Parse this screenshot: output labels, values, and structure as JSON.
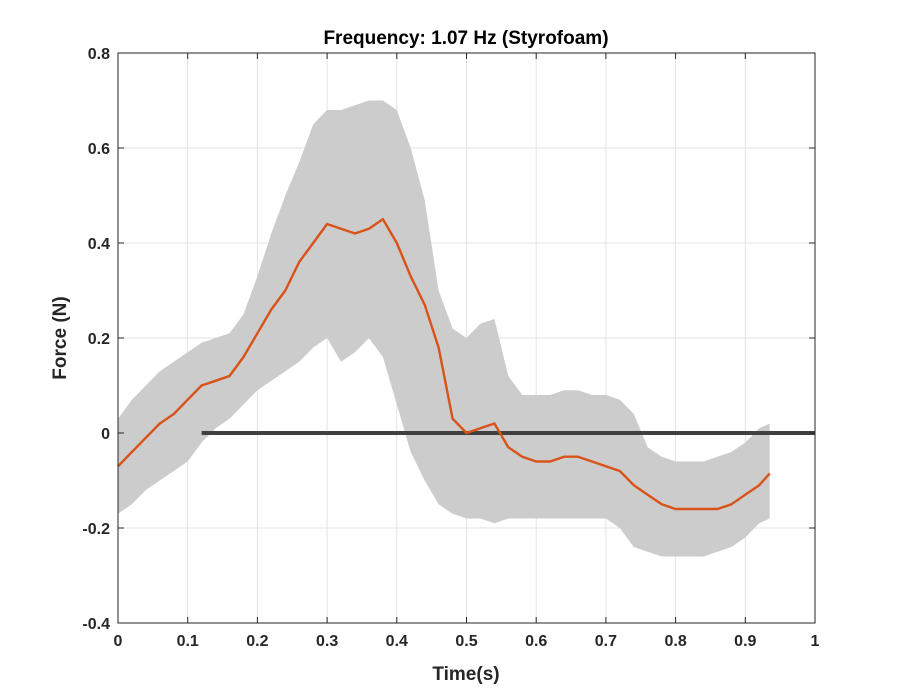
{
  "chart_data": {
    "type": "line",
    "title": "Frequency: 1.07 Hz (Styrofoam)",
    "xlabel": "Time(s)",
    "ylabel": "Force (N)",
    "xlim": [
      0,
      1
    ],
    "ylim": [
      -0.4,
      0.8
    ],
    "xticks": [
      0,
      0.1,
      0.2,
      0.3,
      0.4,
      0.5,
      0.6,
      0.7,
      0.8,
      0.9,
      1
    ],
    "xtick_labels": [
      "0",
      "0.1",
      "0.2",
      "0.3",
      "0.4",
      "0.5",
      "0.6",
      "0.7",
      "0.8",
      "0.9",
      "1"
    ],
    "yticks": [
      -0.4,
      -0.2,
      0,
      0.2,
      0.4,
      0.6,
      0.8
    ],
    "ytick_labels": [
      "-0.4",
      "-0.2",
      "0",
      "0.2",
      "0.4",
      "0.6",
      "0.8"
    ],
    "grid": true,
    "legend": "none",
    "colors": {
      "mean": "#d95319",
      "band": "#cccccc",
      "zero_line": "#404040",
      "grid": "#e3e3e3",
      "axis": "#262626"
    },
    "mean": {
      "x": [
        0,
        0.02,
        0.04,
        0.06,
        0.08,
        0.1,
        0.12,
        0.14,
        0.16,
        0.18,
        0.2,
        0.22,
        0.24,
        0.26,
        0.28,
        0.3,
        0.32,
        0.34,
        0.36,
        0.38,
        0.4,
        0.42,
        0.44,
        0.46,
        0.48,
        0.5,
        0.52,
        0.54,
        0.56,
        0.58,
        0.6,
        0.62,
        0.64,
        0.66,
        0.68,
        0.7,
        0.72,
        0.74,
        0.76,
        0.78,
        0.8,
        0.82,
        0.84,
        0.86,
        0.88,
        0.9,
        0.92,
        0.935
      ],
      "y": [
        -0.07,
        -0.04,
        -0.01,
        0.02,
        0.04,
        0.07,
        0.1,
        0.11,
        0.12,
        0.16,
        0.21,
        0.26,
        0.3,
        0.36,
        0.4,
        0.44,
        0.43,
        0.42,
        0.43,
        0.45,
        0.4,
        0.33,
        0.27,
        0.18,
        0.03,
        0.0,
        0.01,
        0.02,
        -0.03,
        -0.05,
        -0.06,
        -0.06,
        -0.05,
        -0.05,
        -0.06,
        -0.07,
        -0.08,
        -0.11,
        -0.13,
        -0.15,
        -0.16,
        -0.16,
        -0.16,
        -0.16,
        -0.15,
        -0.13,
        -0.11,
        -0.085
      ]
    },
    "band": {
      "x": [
        0,
        0.02,
        0.04,
        0.06,
        0.08,
        0.1,
        0.12,
        0.14,
        0.16,
        0.18,
        0.2,
        0.22,
        0.24,
        0.26,
        0.28,
        0.3,
        0.32,
        0.34,
        0.36,
        0.38,
        0.4,
        0.42,
        0.44,
        0.46,
        0.48,
        0.5,
        0.52,
        0.54,
        0.56,
        0.58,
        0.6,
        0.62,
        0.64,
        0.66,
        0.68,
        0.7,
        0.72,
        0.74,
        0.76,
        0.78,
        0.8,
        0.82,
        0.84,
        0.86,
        0.88,
        0.9,
        0.92,
        0.935
      ],
      "upper": [
        0.03,
        0.07,
        0.1,
        0.13,
        0.15,
        0.17,
        0.19,
        0.2,
        0.21,
        0.25,
        0.33,
        0.42,
        0.5,
        0.57,
        0.65,
        0.68,
        0.68,
        0.69,
        0.7,
        0.7,
        0.68,
        0.6,
        0.49,
        0.3,
        0.22,
        0.2,
        0.23,
        0.24,
        0.12,
        0.08,
        0.08,
        0.08,
        0.09,
        0.09,
        0.08,
        0.08,
        0.07,
        0.04,
        -0.03,
        -0.05,
        -0.06,
        -0.06,
        -0.06,
        -0.05,
        -0.04,
        -0.02,
        0.01,
        0.02
      ],
      "lower": [
        -0.17,
        -0.15,
        -0.12,
        -0.1,
        -0.08,
        -0.06,
        -0.02,
        0.01,
        0.03,
        0.06,
        0.09,
        0.11,
        0.13,
        0.15,
        0.18,
        0.2,
        0.15,
        0.17,
        0.2,
        0.16,
        0.06,
        -0.04,
        -0.1,
        -0.15,
        -0.17,
        -0.18,
        -0.18,
        -0.19,
        -0.18,
        -0.18,
        -0.18,
        -0.18,
        -0.18,
        -0.18,
        -0.18,
        -0.18,
        -0.2,
        -0.24,
        -0.25,
        -0.26,
        -0.26,
        -0.26,
        -0.26,
        -0.25,
        -0.24,
        -0.22,
        -0.19,
        -0.18
      ]
    },
    "zero_line": {
      "y": 0,
      "x": [
        0.12,
        1
      ]
    }
  }
}
